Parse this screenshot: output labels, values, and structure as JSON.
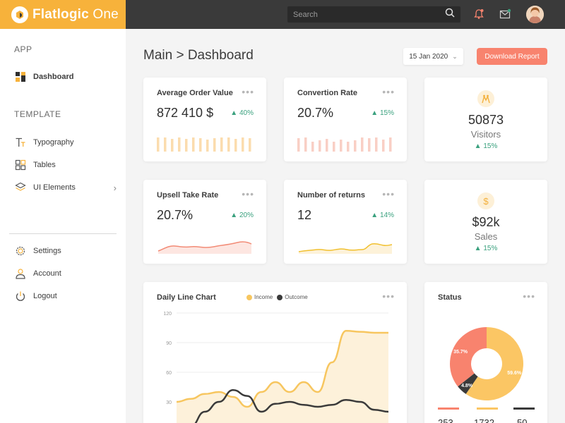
{
  "brand": {
    "name_bold": "Flatlogic",
    "name_rest": " One"
  },
  "search": {
    "placeholder": "Search"
  },
  "sidebar": {
    "app_heading": "APP",
    "template_heading": "TEMPLATE",
    "items": [
      {
        "label": "Dashboard",
        "icon": "dashboard-icon",
        "active": true
      },
      {
        "label": "Typography",
        "icon": "typography-icon"
      },
      {
        "label": "Tables",
        "icon": "tables-icon"
      },
      {
        "label": "UI Elements",
        "icon": "layers-icon"
      },
      {
        "label": "Settings",
        "icon": "gear-icon"
      },
      {
        "label": "Account",
        "icon": "account-icon"
      },
      {
        "label": "Logout",
        "icon": "power-icon"
      }
    ]
  },
  "header": {
    "title": "Main > Dashboard",
    "date": "15 Jan 2020",
    "download_label": "Download Report"
  },
  "cards": {
    "avg_order": {
      "title": "Average Order Value",
      "value": "872 410 $",
      "trend": "▲ 40%"
    },
    "conversion": {
      "title": "Convertion Rate",
      "value": "20.7%",
      "trend": "▲ 15%"
    },
    "upsell": {
      "title": "Upsell Take Rate",
      "value": "20.7%",
      "trend": "▲ 20%"
    },
    "returns": {
      "title": "Number of returns",
      "value": "12",
      "trend": "▲ 14%"
    },
    "visitors": {
      "value": "50873",
      "label": "Visitors",
      "trend": "▲ 15%"
    },
    "sales": {
      "value": "$92k",
      "label": "Sales",
      "trend": "▲ 15%"
    },
    "daily": {
      "title": "Daily Line Chart",
      "legend_income": "Income",
      "legend_outcome": "Outcome"
    },
    "status": {
      "title": "Status",
      "numbers": [
        "253",
        "1732",
        "50"
      ]
    }
  },
  "colors": {
    "brand": "#f7b23b",
    "accent_red": "#f8836e",
    "income": "#f7c65f",
    "outcome": "#3a3a3a",
    "trend_up": "#3aa17e"
  },
  "chart_data": [
    {
      "type": "line",
      "title": "Daily Line Chart",
      "y_ticks": [
        30,
        60,
        90,
        120
      ],
      "ylim": [
        0,
        120
      ],
      "grid": true,
      "legend_position": "top",
      "series": [
        {
          "name": "Income",
          "color": "#f7c65f",
          "values": [
            30,
            33,
            38,
            40,
            35,
            25,
            40,
            50,
            40,
            50,
            40,
            70,
            102,
            101,
            100,
            100
          ]
        },
        {
          "name": "Outcome",
          "color": "#3a3a3a",
          "values": [
            0,
            5,
            20,
            30,
            42,
            36,
            20,
            28,
            30,
            27,
            25,
            27,
            32,
            30,
            22,
            20
          ]
        }
      ]
    },
    {
      "type": "pie",
      "title": "Status",
      "slices": [
        {
          "label": "35.7%",
          "value": 35.7,
          "color": "#f8836e"
        },
        {
          "label": "59.6%",
          "value": 59.6,
          "color": "#fbc664"
        },
        {
          "label": "4.8%",
          "value": 4.8,
          "color": "#3a3a3a"
        }
      ]
    }
  ]
}
